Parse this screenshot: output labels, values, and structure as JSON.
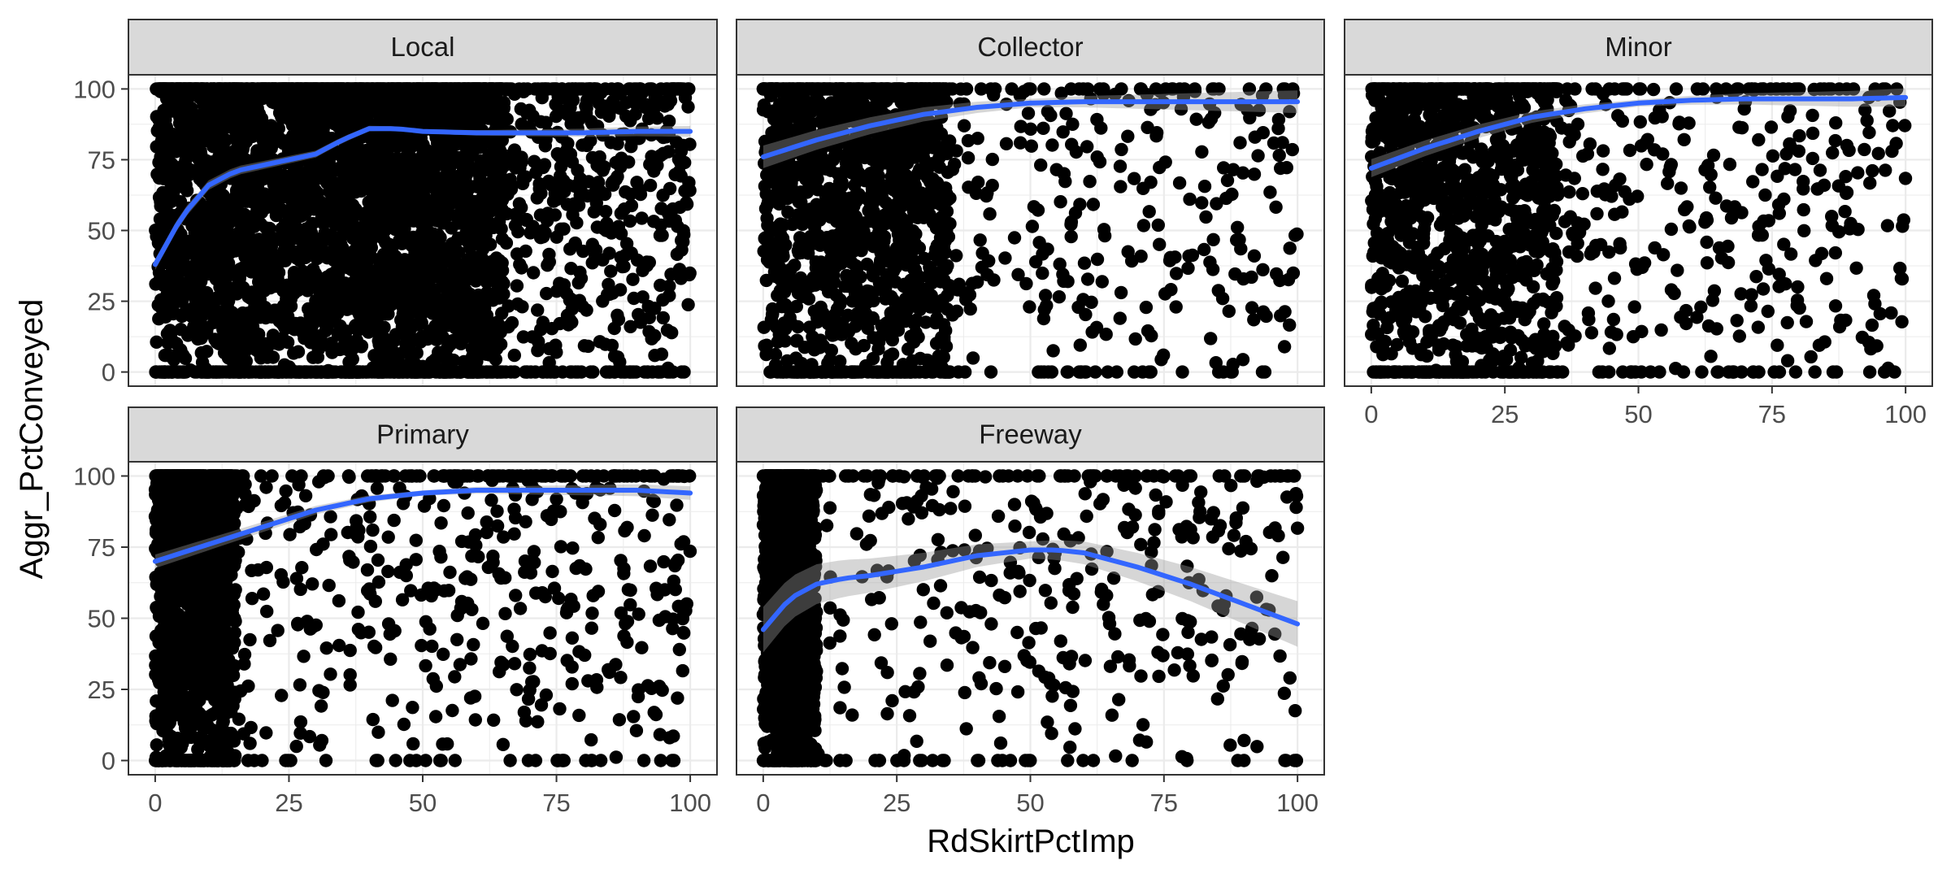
{
  "chart_data": {
    "type": "scatter",
    "layout": "facet_wrap",
    "xlabel": "RdSkirtPctImp",
    "ylabel": "Aggr_PctConveyed",
    "xlim": [
      -5,
      105
    ],
    "ylim": [
      -5,
      105
    ],
    "x_ticks": [
      "0",
      "25",
      "50",
      "75",
      "100"
    ],
    "y_ticks": [
      "0",
      "25",
      "50",
      "75",
      "100"
    ],
    "grid": true,
    "legend": "none",
    "colors": {
      "points": "#000000",
      "smooth_line": "#3366FF",
      "confidence_band": "#999999",
      "strip_fill": "#D9D9D9",
      "panel_border": "#333333",
      "grid_major": "#EBEBEB"
    },
    "facets": [
      {
        "label": "Local",
        "n_points": 4200,
        "dense_x_max": 65,
        "se_width": 1.2,
        "smooth": [
          [
            0,
            38
          ],
          [
            5,
            55
          ],
          [
            10,
            66
          ],
          [
            15,
            71
          ],
          [
            20,
            73
          ],
          [
            25,
            75
          ],
          [
            30,
            77
          ],
          [
            35,
            82
          ],
          [
            40,
            86
          ],
          [
            45,
            86
          ],
          [
            50,
            85
          ],
          [
            60,
            84.5
          ],
          [
            70,
            84.5
          ],
          [
            80,
            84.5
          ],
          [
            90,
            85
          ],
          [
            100,
            85
          ]
        ]
      },
      {
        "label": "Collector",
        "n_points": 1600,
        "dense_x_max": 35,
        "se_width": 2.5,
        "smooth": [
          [
            0,
            76
          ],
          [
            10,
            82
          ],
          [
            20,
            87
          ],
          [
            30,
            91
          ],
          [
            40,
            93.5
          ],
          [
            50,
            95
          ],
          [
            60,
            95.5
          ],
          [
            70,
            95.5
          ],
          [
            80,
            95.5
          ],
          [
            90,
            95.5
          ],
          [
            100,
            95.5
          ]
        ]
      },
      {
        "label": "Minor",
        "n_points": 1600,
        "dense_x_max": 35,
        "se_width": 2.0,
        "smooth": [
          [
            0,
            72
          ],
          [
            10,
            79
          ],
          [
            20,
            85
          ],
          [
            30,
            90
          ],
          [
            40,
            93
          ],
          [
            50,
            95
          ],
          [
            60,
            96
          ],
          [
            70,
            96.5
          ],
          [
            80,
            96.5
          ],
          [
            90,
            96.5
          ],
          [
            100,
            97
          ]
        ]
      },
      {
        "label": "Primary",
        "n_points": 1900,
        "dense_x_max": 15,
        "se_width": 1.5,
        "smooth": [
          [
            0,
            70
          ],
          [
            10,
            76
          ],
          [
            20,
            82
          ],
          [
            30,
            88
          ],
          [
            40,
            92
          ],
          [
            50,
            94
          ],
          [
            60,
            95
          ],
          [
            70,
            95
          ],
          [
            80,
            95
          ],
          [
            90,
            95
          ],
          [
            100,
            94
          ]
        ]
      },
      {
        "label": "Freeway",
        "n_points": 1500,
        "dense_x_max": 10,
        "se_width": 5,
        "smooth": [
          [
            0,
            46
          ],
          [
            5,
            57
          ],
          [
            10,
            62
          ],
          [
            15,
            64
          ],
          [
            20,
            65
          ],
          [
            30,
            68
          ],
          [
            40,
            72
          ],
          [
            50,
            74
          ],
          [
            55,
            74
          ],
          [
            60,
            73
          ],
          [
            70,
            68
          ],
          [
            80,
            62
          ],
          [
            90,
            55
          ],
          [
            100,
            48
          ]
        ]
      }
    ]
  }
}
